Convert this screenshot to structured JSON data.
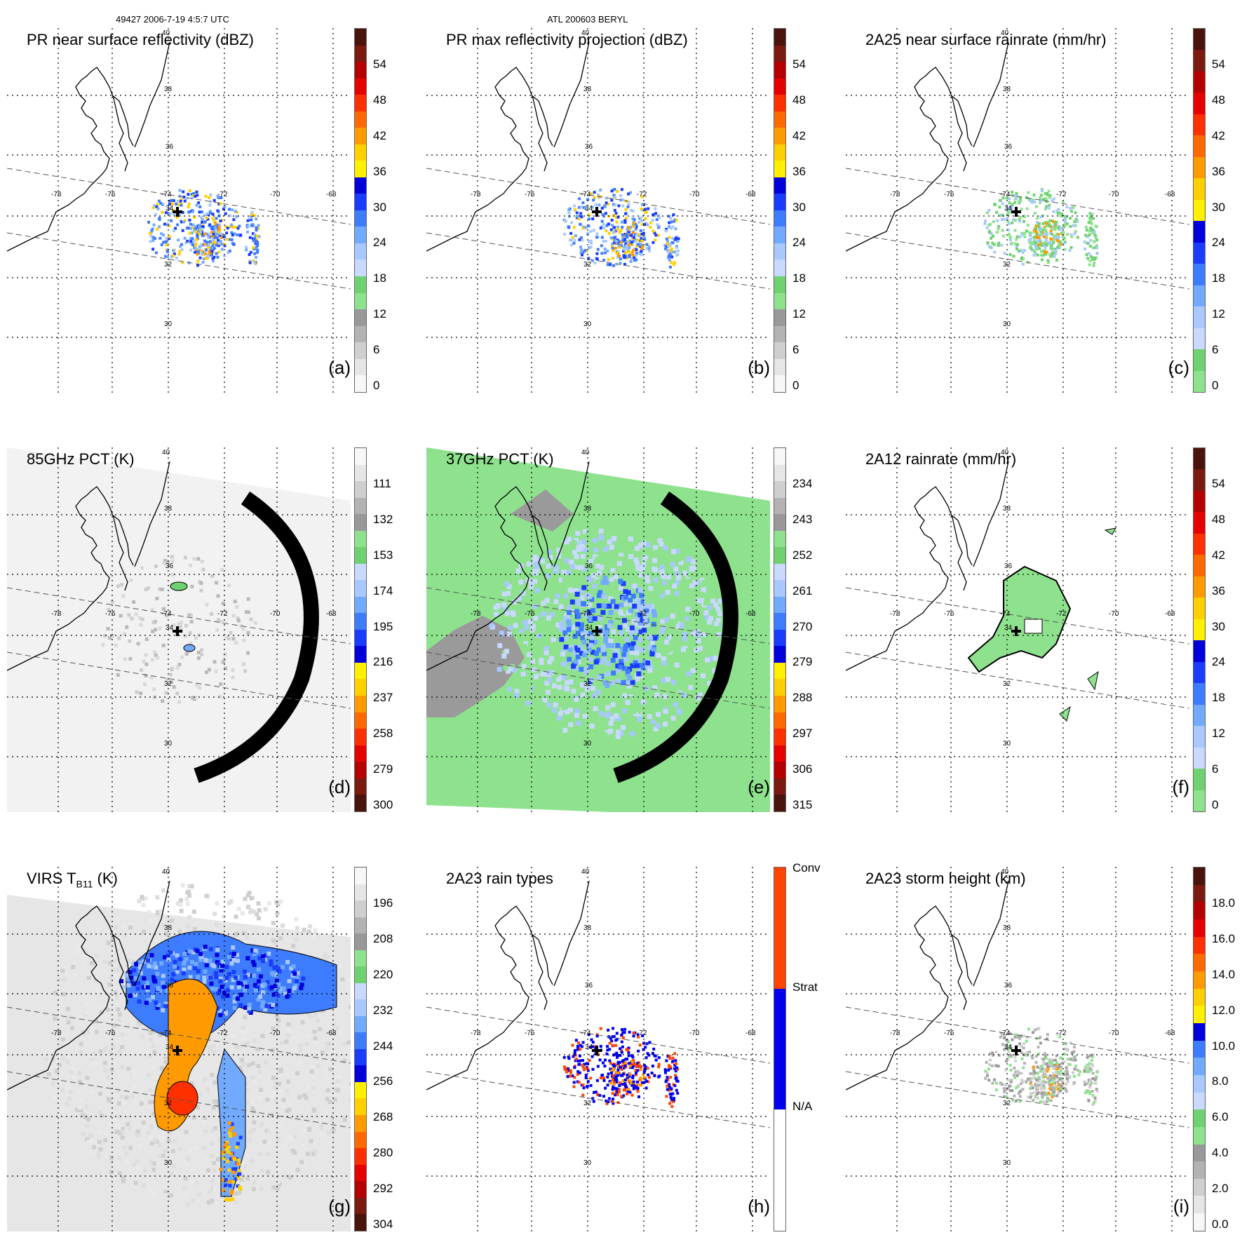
{
  "header": {
    "orbit_time": "49427 2006-7-19 4:5:7 UTC",
    "storm": "ATL 200603 BERYL"
  },
  "map_labels": {
    "lat": [
      "40",
      "38",
      "36",
      "34",
      "32",
      "30"
    ],
    "lon": [
      "-78",
      "-76",
      "-74",
      "-72",
      "-70",
      "-68"
    ]
  },
  "colors": {
    "scale_a": [
      "#f7f7f7",
      "#e6e6e6",
      "#cfcfcf",
      "#b3b3b3",
      "#999999",
      "#8ee28e",
      "#6fd16f",
      "#c9d9ff",
      "#a8c8ff",
      "#72aaff",
      "#3d7cff",
      "#1a3cff",
      "#0000dd",
      "#ffef00",
      "#ffd000",
      "#ff9a00",
      "#ff6a00",
      "#ff3000",
      "#e60000",
      "#b40000",
      "#7a1a10",
      "#4a140c"
    ],
    "scale_c": [
      "#8ee28e",
      "#6fd16f",
      "#c9d9ff",
      "#a8c8ff",
      "#72aaff",
      "#3d7cff",
      "#1a3cff",
      "#0000dd",
      "#ffef00",
      "#ffd000",
      "#ff9a00",
      "#ff6a00",
      "#ff3000",
      "#e60000",
      "#b40000",
      "#7a1a10",
      "#4a140c"
    ],
    "scale_i": [
      "#f7f7f7",
      "#e6e6e6",
      "#cfcfcf",
      "#b3b3b3",
      "#999999",
      "#8ee28e",
      "#6fd16f",
      "#c9d9ff",
      "#a8c8ff",
      "#72aaff",
      "#3d7cff",
      "#0000dd",
      "#ffef00",
      "#ffd000",
      "#ff9a00",
      "#ff6a00",
      "#ff3000",
      "#e60000",
      "#b40000",
      "#7a1a10",
      "#4a140c"
    ],
    "rain_types": [
      "#ffffff",
      "#0000ee",
      "#ff4500"
    ]
  },
  "panels": [
    {
      "id": "a",
      "title": "PR near surface reflectivity (dBZ)",
      "label": "(a)",
      "scale": "scale_a",
      "ticks": [
        "54",
        "48",
        "42",
        "36",
        "30",
        "24",
        "18",
        "12",
        "6",
        "0"
      ]
    },
    {
      "id": "b",
      "title": "PR max reflectivity projection (dBZ)",
      "label": "(b)",
      "scale": "scale_a",
      "ticks": [
        "54",
        "48",
        "42",
        "36",
        "30",
        "24",
        "18",
        "12",
        "6",
        "0"
      ]
    },
    {
      "id": "c",
      "title": "2A25 near surface rainrate (mm/hr)",
      "label": "(c)",
      "scale": "scale_c",
      "ticks": [
        "54",
        "48",
        "42",
        "36",
        "30",
        "24",
        "18",
        "12",
        "6",
        "0"
      ]
    },
    {
      "id": "d",
      "title": "85GHz PCT (K)",
      "label": "(d)",
      "scale": "scale_a_rev",
      "ticks": [
        "111",
        "132",
        "153",
        "174",
        "195",
        "216",
        "237",
        "258",
        "279",
        "300"
      ]
    },
    {
      "id": "e",
      "title": "37GHz PCT (K)",
      "label": "(e)",
      "scale": "scale_a_rev",
      "ticks": [
        "234",
        "243",
        "252",
        "261",
        "270",
        "279",
        "288",
        "297",
        "306",
        "315"
      ]
    },
    {
      "id": "f",
      "title": "2A12 rainrate (mm/hr)",
      "label": "(f)",
      "scale": "scale_c",
      "ticks": [
        "54",
        "48",
        "42",
        "36",
        "30",
        "24",
        "18",
        "12",
        "6",
        "0"
      ]
    },
    {
      "id": "g",
      "title": "VIRS T",
      "title_sub": "B11",
      "title_unit": "(K)",
      "label": "(g)",
      "scale": "scale_a_rev",
      "ticks": [
        "196",
        "208",
        "220",
        "232",
        "244",
        "256",
        "268",
        "280",
        "292",
        "304"
      ]
    },
    {
      "id": "h",
      "title": "2A23 rain types",
      "label": "(h)",
      "scale": "rain_types",
      "ticks": [
        "Conv",
        "Strat",
        "N/A"
      ]
    },
    {
      "id": "i",
      "title": "2A23 storm height (km)",
      "label": "(i)",
      "scale": "scale_i",
      "ticks": [
        "18.0",
        "16.0",
        "14.0",
        "12.0",
        "10.0",
        "8.0",
        "6.0",
        "4.0",
        "2.0",
        "0.0"
      ]
    }
  ]
}
